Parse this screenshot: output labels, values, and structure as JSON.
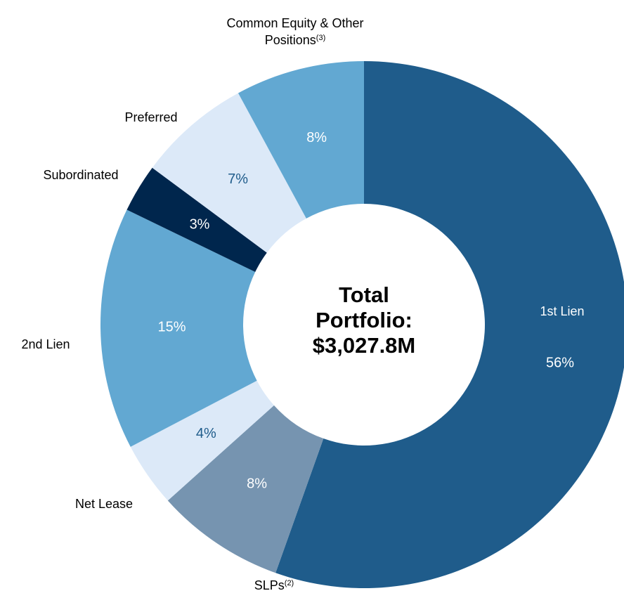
{
  "chart_data": {
    "type": "donut",
    "categories": [
      "1st Lien",
      "SLPs",
      "Net Lease",
      "2nd Lien",
      "Subordinated",
      "Preferred",
      "Common Equity & Other Positions"
    ],
    "footnotes": [
      null,
      "(2)",
      null,
      null,
      null,
      null,
      "(3)"
    ],
    "values": [
      56,
      8,
      4,
      15,
      3,
      7,
      8
    ],
    "value_labels": [
      "56%",
      "8%",
      "4%",
      "15%",
      "3%",
      "7%",
      "8%"
    ],
    "colors": [
      "#1f5c8b",
      "#7694b0",
      "#dce9f8",
      "#62a8d2",
      "#00264d",
      "#dce9f8",
      "#62a8d2"
    ],
    "center_text": [
      "Total",
      "Portfolio:",
      "$3,027.8M"
    ]
  }
}
